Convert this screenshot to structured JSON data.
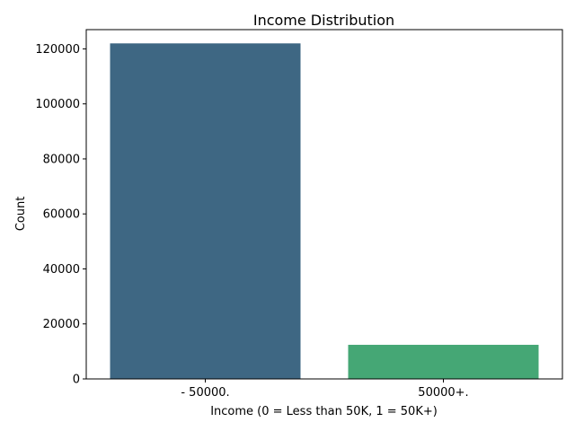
{
  "chart_data": {
    "type": "bar",
    "title": "Income Distribution",
    "xlabel": "Income (0 = Less than 50K, 1 = 50K+)",
    "ylabel": "Count",
    "categories": [
      "- 50000.",
      "50000+."
    ],
    "values": [
      122000,
      12400
    ],
    "colors": [
      "#3e6783",
      "#45a775"
    ],
    "ylim": [
      0,
      127000
    ],
    "yticks": [
      0,
      20000,
      40000,
      60000,
      80000,
      100000,
      120000
    ],
    "ytick_labels": [
      "0",
      "20000",
      "40000",
      "60000",
      "80000",
      "100000",
      "120000"
    ],
    "grid": false,
    "legend": "none"
  }
}
